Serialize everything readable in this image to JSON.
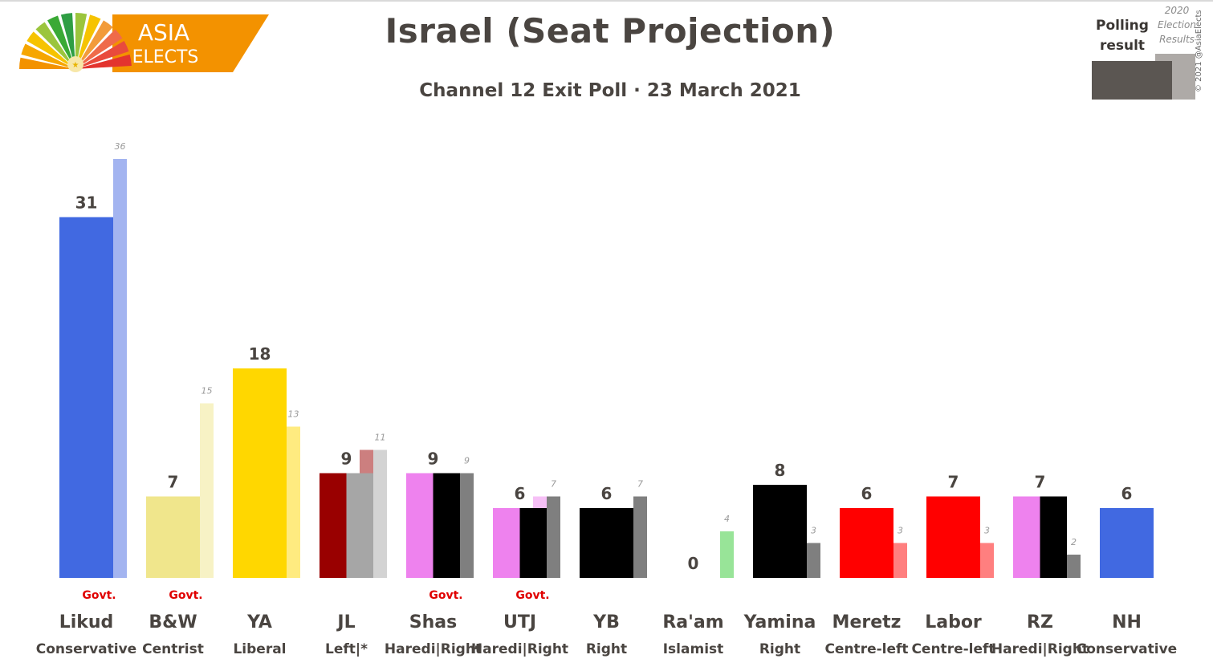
{
  "branding": {
    "logo_line1": "ASIA",
    "logo_line2": "ELECTS",
    "copyright": "© 2021 @AsiaElects"
  },
  "legend": {
    "poll_label": "Polling result",
    "poll_label_lines": [
      "Polling",
      "result"
    ],
    "prev_label": "2020 Election Results",
    "prev_label_lines": [
      "2020",
      "Election",
      "Results"
    ]
  },
  "colors": {
    "text": "#4a4541",
    "govt": "#e00000",
    "poll_swatch": "#5b5652",
    "prev_swatch": "#aeaaa7"
  },
  "chart_data": {
    "type": "bar",
    "title": "Israel (Seat Projection)",
    "subtitle": "Channel 12 Exit Poll · 23 March 2021",
    "ylim": [
      0,
      37
    ],
    "grid": false,
    "govt_label": "Govt.",
    "categories": [
      "Likud",
      "B&W",
      "YA",
      "JL",
      "Shas",
      "UTJ",
      "YB",
      "Ra'am",
      "Yamina",
      "Meretz",
      "Labor",
      "RZ",
      "NH"
    ],
    "ideologies": [
      "Conservative",
      "Centrist",
      "Liberal",
      "Left|*",
      "Haredi|Right",
      "Haredi|Right",
      "Right",
      "Islamist",
      "Right",
      "Centre-left",
      "Centre-left",
      "Haredi|Right",
      "Conservative"
    ],
    "series": [
      {
        "name": "Polling result",
        "values": [
          31,
          7,
          18,
          9,
          9,
          6,
          6,
          0,
          8,
          6,
          7,
          7,
          6
        ]
      },
      {
        "name": "2020 Election Results",
        "values": [
          36,
          15,
          13,
          11,
          9,
          7,
          7,
          4,
          3,
          3,
          3,
          2,
          null
        ]
      }
    ],
    "govt": [
      true,
      true,
      false,
      false,
      true,
      true,
      false,
      false,
      false,
      false,
      false,
      false,
      false
    ],
    "bar_colors": [
      [
        "#4169e1"
      ],
      [
        "#f0e68c"
      ],
      [
        "#ffd700"
      ],
      [
        "#990000",
        "#a6a6a6"
      ],
      [
        "#ee82ee",
        "#000000"
      ],
      [
        "#ee82ee",
        "#000000"
      ],
      [
        "#000000"
      ],
      [],
      [
        "#000000"
      ],
      [
        "#ff0000"
      ],
      [
        "#ff0000"
      ],
      [
        "#ee82ee",
        "#000000"
      ],
      [
        "#4169e1"
      ]
    ],
    "prev_colors": [
      [
        "#a3b4f0"
      ],
      [
        "#f7f2c5"
      ],
      [
        "#ffeb80"
      ],
      [
        "#cc7f7f",
        "#d3d3d3"
      ],
      [
        "#7f7f7f"
      ],
      [
        "#f6c0f6",
        "#7f7f7f"
      ],
      [
        "#7f7f7f"
      ],
      [
        "#98e498"
      ],
      [
        "#7f7f7f"
      ],
      [
        "#ff7f7f"
      ],
      [
        "#ff7f7f"
      ],
      [
        "#7f7f7f"
      ],
      []
    ]
  }
}
